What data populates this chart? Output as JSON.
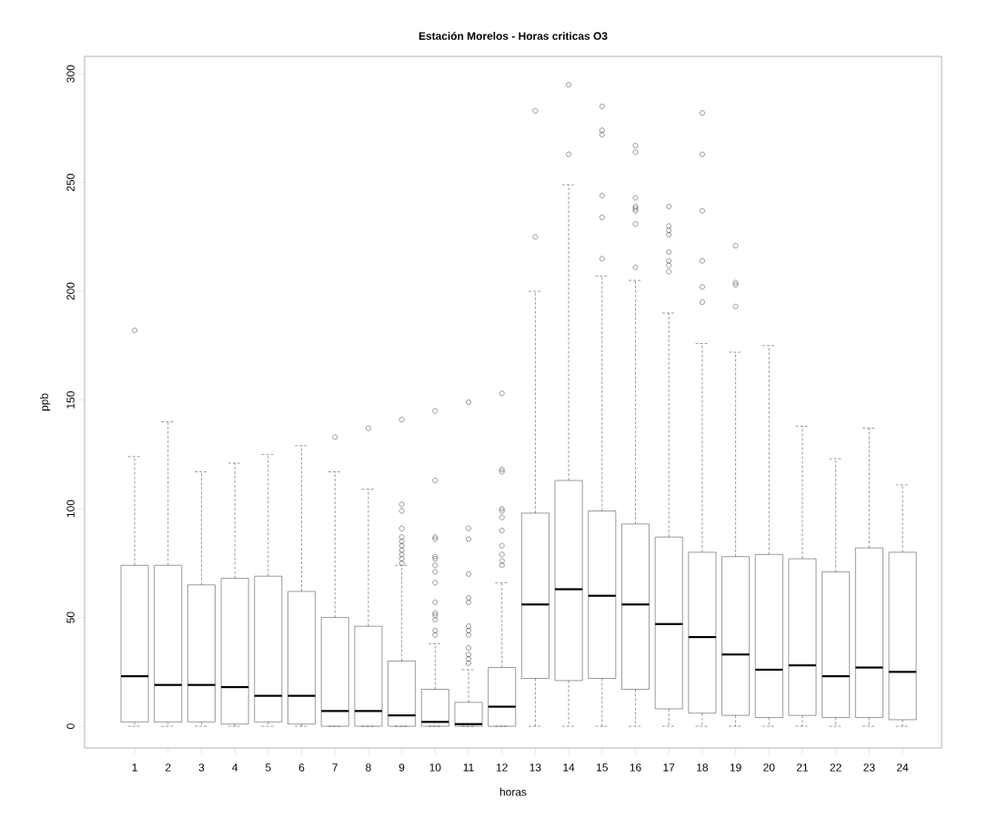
{
  "chart_data": {
    "type": "box",
    "title": "Estación Morelos - Horas criticas O3",
    "xlabel": "horas",
    "ylabel": "ppb",
    "color": "#000000",
    "marker": "circle",
    "categories": [
      "1",
      "2",
      "3",
      "4",
      "5",
      "6",
      "7",
      "8",
      "9",
      "10",
      "11",
      "12",
      "13",
      "14",
      "15",
      "16",
      "17",
      "18",
      "19",
      "20",
      "21",
      "22",
      "23",
      "24"
    ],
    "ylim": [
      -10,
      308
    ],
    "yticks": [
      0,
      50,
      100,
      150,
      200,
      250,
      300
    ],
    "grid": false,
    "boxes": [
      {
        "low": 0,
        "q1": 2,
        "median": 23,
        "q3": 74,
        "high": 124,
        "outliers": [
          182
        ]
      },
      {
        "low": 0,
        "q1": 2,
        "median": 19,
        "q3": 74,
        "high": 140
      },
      {
        "low": 0,
        "q1": 2,
        "median": 19,
        "q3": 65,
        "high": 117
      },
      {
        "low": 0,
        "q1": 1,
        "median": 18,
        "q3": 68,
        "high": 121
      },
      {
        "low": 0,
        "q1": 2,
        "median": 14,
        "q3": 69,
        "high": 125
      },
      {
        "low": 0,
        "q1": 1,
        "median": 14,
        "q3": 62,
        "high": 129
      },
      {
        "low": 0,
        "q1": 0,
        "median": 7,
        "q3": 50,
        "high": 117,
        "outliers": [
          133
        ]
      },
      {
        "low": 0,
        "q1": 0,
        "median": 7,
        "q3": 46,
        "high": 109,
        "outliers": [
          137
        ]
      },
      {
        "low": 0,
        "q1": 0,
        "median": 5,
        "q3": 30,
        "high": 74,
        "outliers": [
          75,
          77,
          79,
          81,
          83,
          85,
          87,
          91,
          99,
          102,
          141
        ]
      },
      {
        "low": 0,
        "q1": 0,
        "median": 2,
        "q3": 17,
        "high": 38,
        "outliers": [
          42,
          44,
          49,
          51,
          52,
          57,
          66,
          71,
          74,
          77,
          78,
          86,
          87,
          113,
          145
        ]
      },
      {
        "low": 0,
        "q1": 0,
        "median": 1,
        "q3": 11,
        "high": 26,
        "outliers": [
          29,
          31,
          33,
          36,
          42,
          44,
          46,
          57,
          59,
          70,
          86,
          91,
          149
        ]
      },
      {
        "low": 0,
        "q1": 0,
        "median": 9,
        "q3": 27,
        "high": 66,
        "outliers": [
          74,
          76,
          79,
          83,
          90,
          96,
          99,
          100,
          117,
          118,
          153
        ]
      },
      {
        "low": 0,
        "q1": 22,
        "median": 56,
        "q3": 98,
        "high": 200,
        "outliers": [
          225,
          283
        ]
      },
      {
        "low": 0,
        "q1": 21,
        "median": 63,
        "q3": 113,
        "high": 249,
        "outliers": [
          263,
          295
        ]
      },
      {
        "low": 0,
        "q1": 22,
        "median": 60,
        "q3": 99,
        "high": 207,
        "outliers": [
          215,
          234,
          244,
          272,
          274,
          285
        ]
      },
      {
        "low": 0,
        "q1": 17,
        "median": 56,
        "q3": 93,
        "high": 205,
        "outliers": [
          211,
          231,
          237,
          238,
          239,
          243,
          264,
          267
        ]
      },
      {
        "low": 0,
        "q1": 8,
        "median": 47,
        "q3": 87,
        "high": 190,
        "outliers": [
          209,
          212,
          214,
          218,
          226,
          228,
          230,
          239
        ]
      },
      {
        "low": 0,
        "q1": 6,
        "median": 41,
        "q3": 80,
        "high": 176,
        "outliers": [
          195,
          202,
          214,
          237,
          263,
          282
        ]
      },
      {
        "low": 0,
        "q1": 5,
        "median": 33,
        "q3": 78,
        "high": 172,
        "outliers": [
          193,
          203,
          204,
          221
        ]
      },
      {
        "low": 0,
        "q1": 4,
        "median": 26,
        "q3": 79,
        "high": 175
      },
      {
        "low": 0,
        "q1": 5,
        "median": 28,
        "q3": 77,
        "high": 138
      },
      {
        "low": 0,
        "q1": 4,
        "median": 23,
        "q3": 71,
        "high": 123
      },
      {
        "low": 0,
        "q1": 4,
        "median": 27,
        "q3": 82,
        "high": 137
      },
      {
        "low": 0,
        "q1": 3,
        "median": 25,
        "q3": 80,
        "high": 111
      }
    ]
  }
}
